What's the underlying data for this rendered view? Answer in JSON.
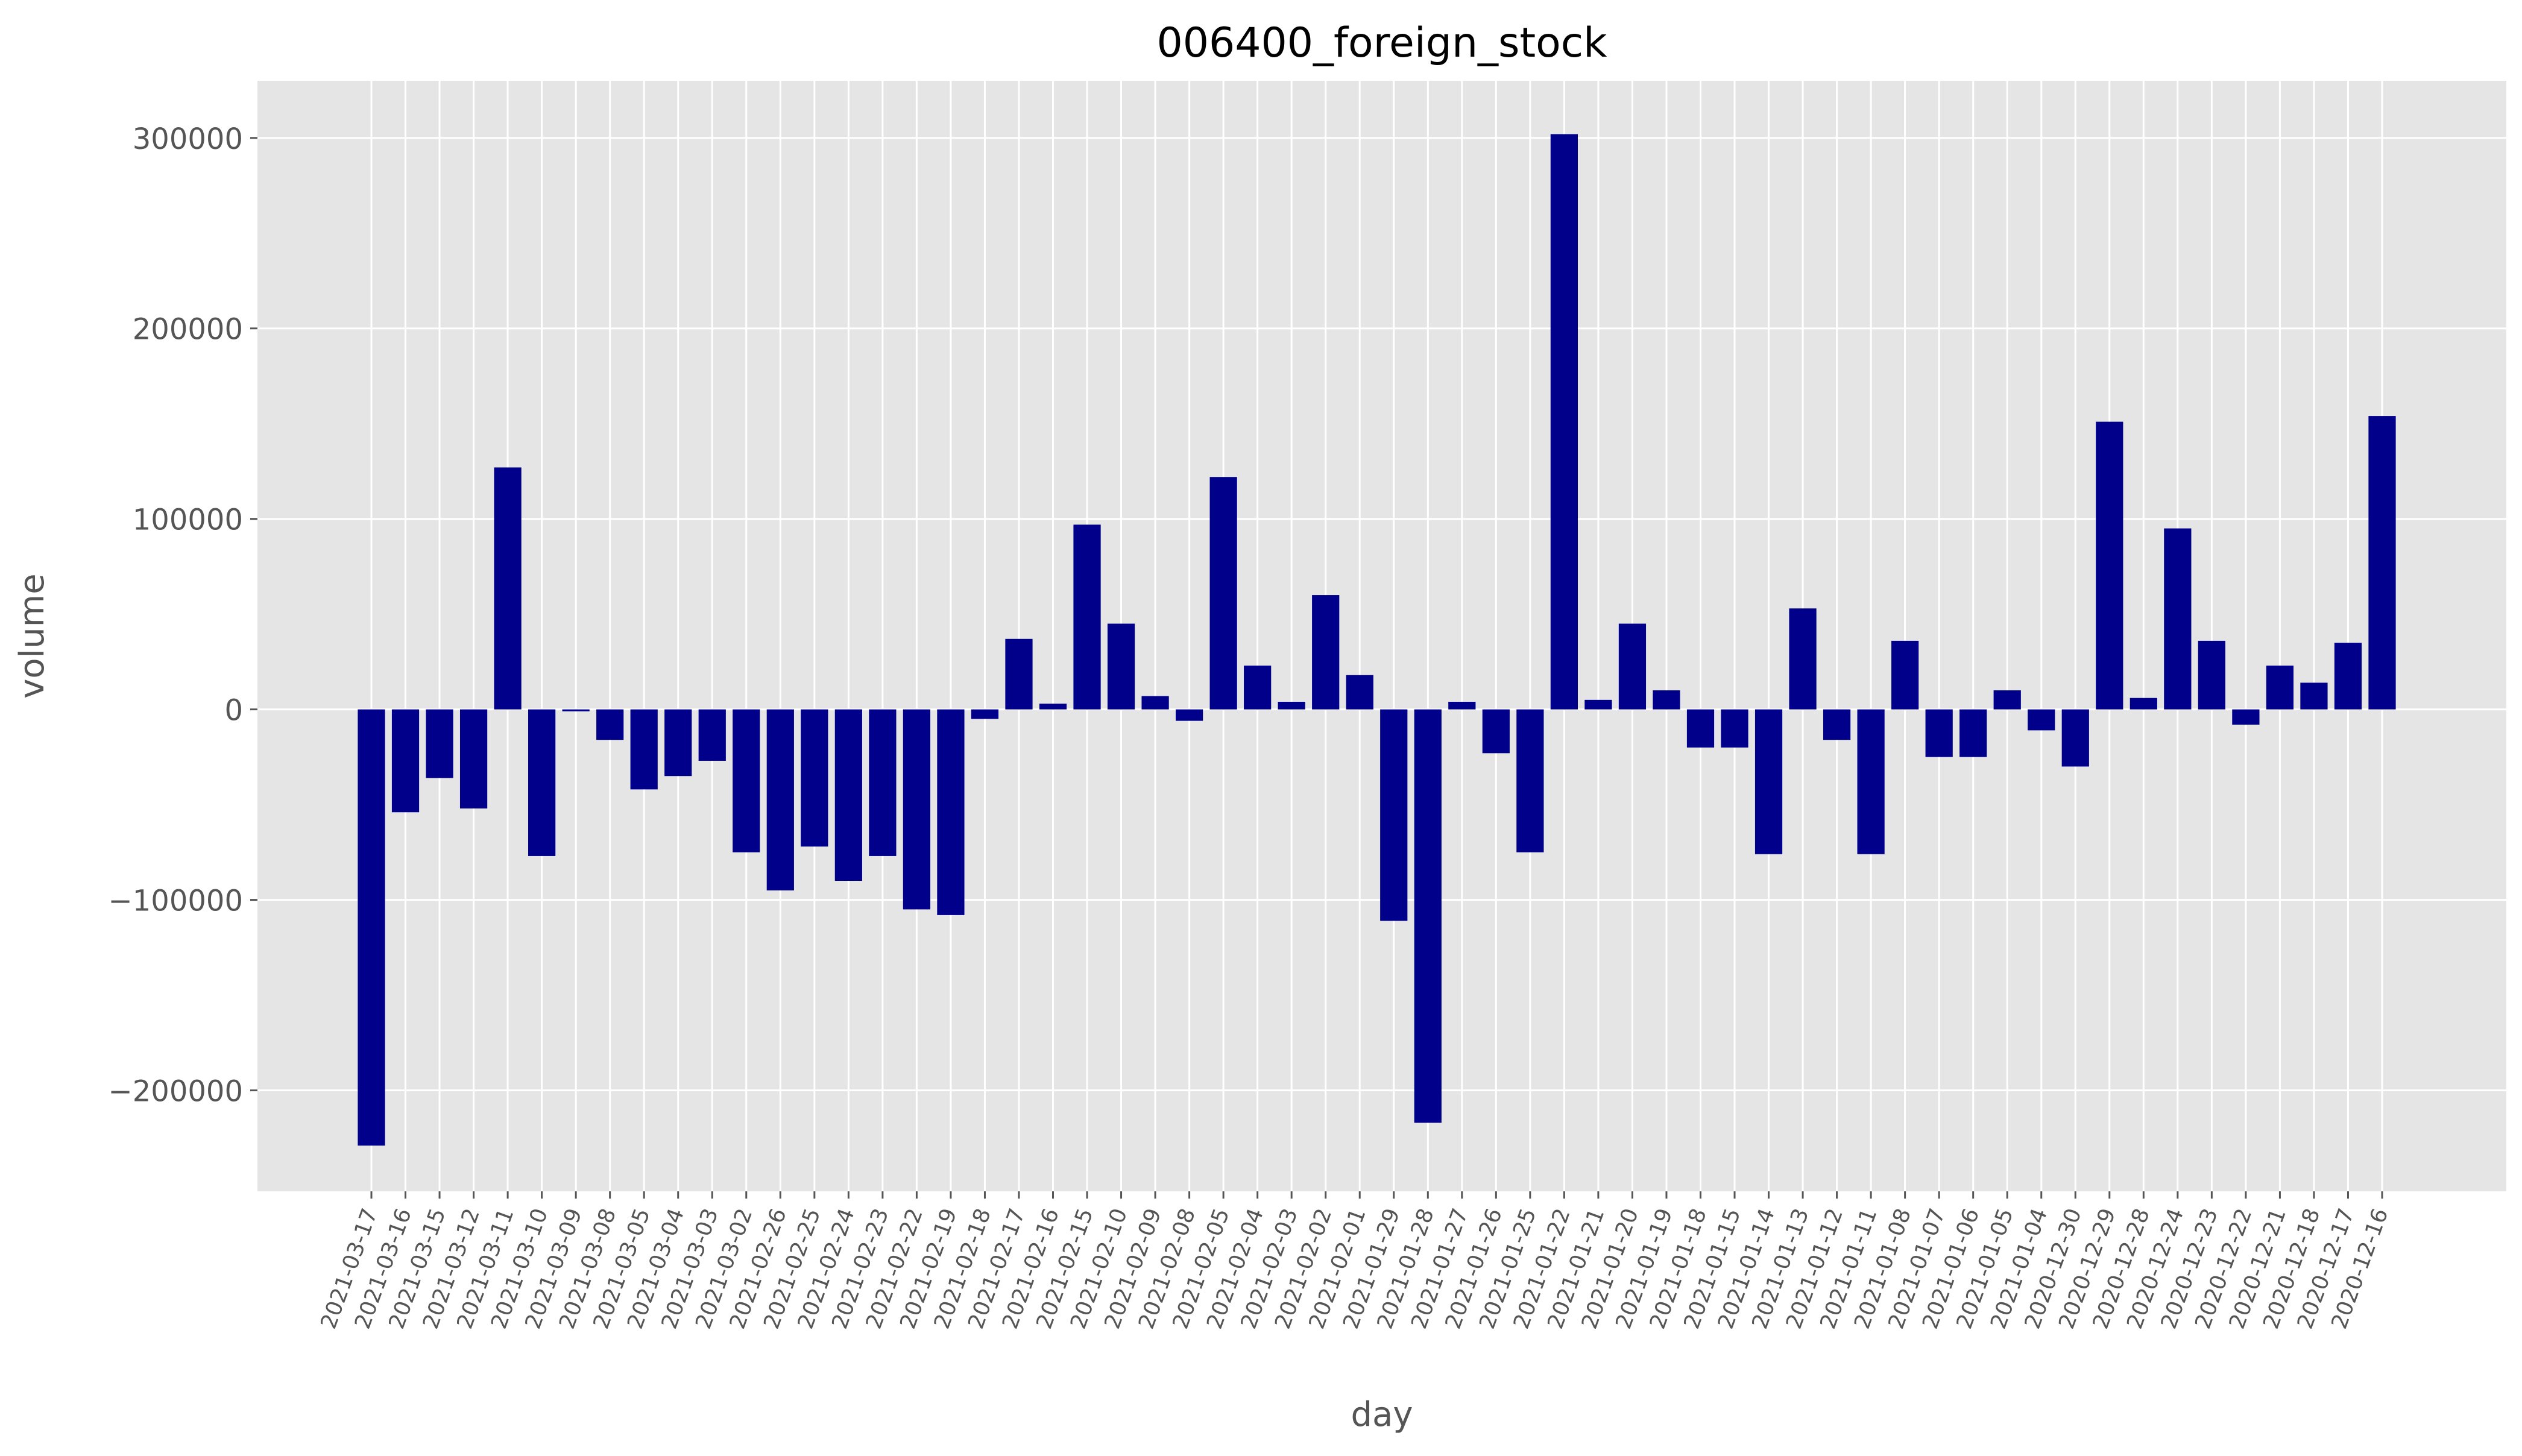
{
  "chart_data": {
    "type": "bar",
    "title": "006400_foreign_stock",
    "xlabel": "day",
    "ylabel": "volume",
    "ylim": [
      -253000,
      330000
    ],
    "yticks": [
      -200000,
      -100000,
      0,
      100000,
      200000,
      300000
    ],
    "ytick_labels": [
      "−200000",
      "−100000",
      "0",
      "100000",
      "200000",
      "300000"
    ],
    "grid": true,
    "legend": "none",
    "colors": {
      "bar": "#00008b",
      "plot_bg": "#e5e5e5",
      "grid": "#ffffff"
    },
    "categories": [
      "2021-03-17",
      "2021-03-16",
      "2021-03-15",
      "2021-03-12",
      "2021-03-11",
      "2021-03-10",
      "2021-03-09",
      "2021-03-08",
      "2021-03-05",
      "2021-03-04",
      "2021-03-03",
      "2021-03-02",
      "2021-02-26",
      "2021-02-25",
      "2021-02-24",
      "2021-02-23",
      "2021-02-22",
      "2021-02-19",
      "2021-02-18",
      "2021-02-17",
      "2021-02-16",
      "2021-02-15",
      "2021-02-10",
      "2021-02-09",
      "2021-02-08",
      "2021-02-05",
      "2021-02-04",
      "2021-02-03",
      "2021-02-02",
      "2021-02-01",
      "2021-01-29",
      "2021-01-28",
      "2021-01-27",
      "2021-01-26",
      "2021-01-25",
      "2021-01-22",
      "2021-01-21",
      "2021-01-20",
      "2021-01-19",
      "2021-01-18",
      "2021-01-15",
      "2021-01-14",
      "2021-01-13",
      "2021-01-12",
      "2021-01-11",
      "2021-01-08",
      "2021-01-07",
      "2021-01-06",
      "2021-01-05",
      "2021-01-04",
      "2020-12-30",
      "2020-12-29",
      "2020-12-28",
      "2020-12-24",
      "2020-12-23",
      "2020-12-22",
      "2020-12-21",
      "2020-12-18",
      "2020-12-17",
      "2020-12-16"
    ],
    "values": [
      -229000,
      -54000,
      -36000,
      -52000,
      127000,
      -77000,
      -1000,
      -16000,
      -42000,
      -35000,
      -27000,
      -75000,
      -95000,
      -72000,
      -90000,
      -77000,
      -105000,
      -108000,
      -5000,
      37000,
      3000,
      97000,
      45000,
      7000,
      -6000,
      122000,
      23000,
      4000,
      60000,
      18000,
      -111000,
      -217000,
      4000,
      -23000,
      -75000,
      302000,
      5000,
      45000,
      10000,
      -20000,
      -20000,
      -76000,
      53000,
      -16000,
      -76000,
      36000,
      -25000,
      -25000,
      10000,
      -11000,
      -30000,
      151000,
      6000,
      95000,
      36000,
      -8000,
      23000,
      14000,
      35000,
      154000
    ]
  }
}
